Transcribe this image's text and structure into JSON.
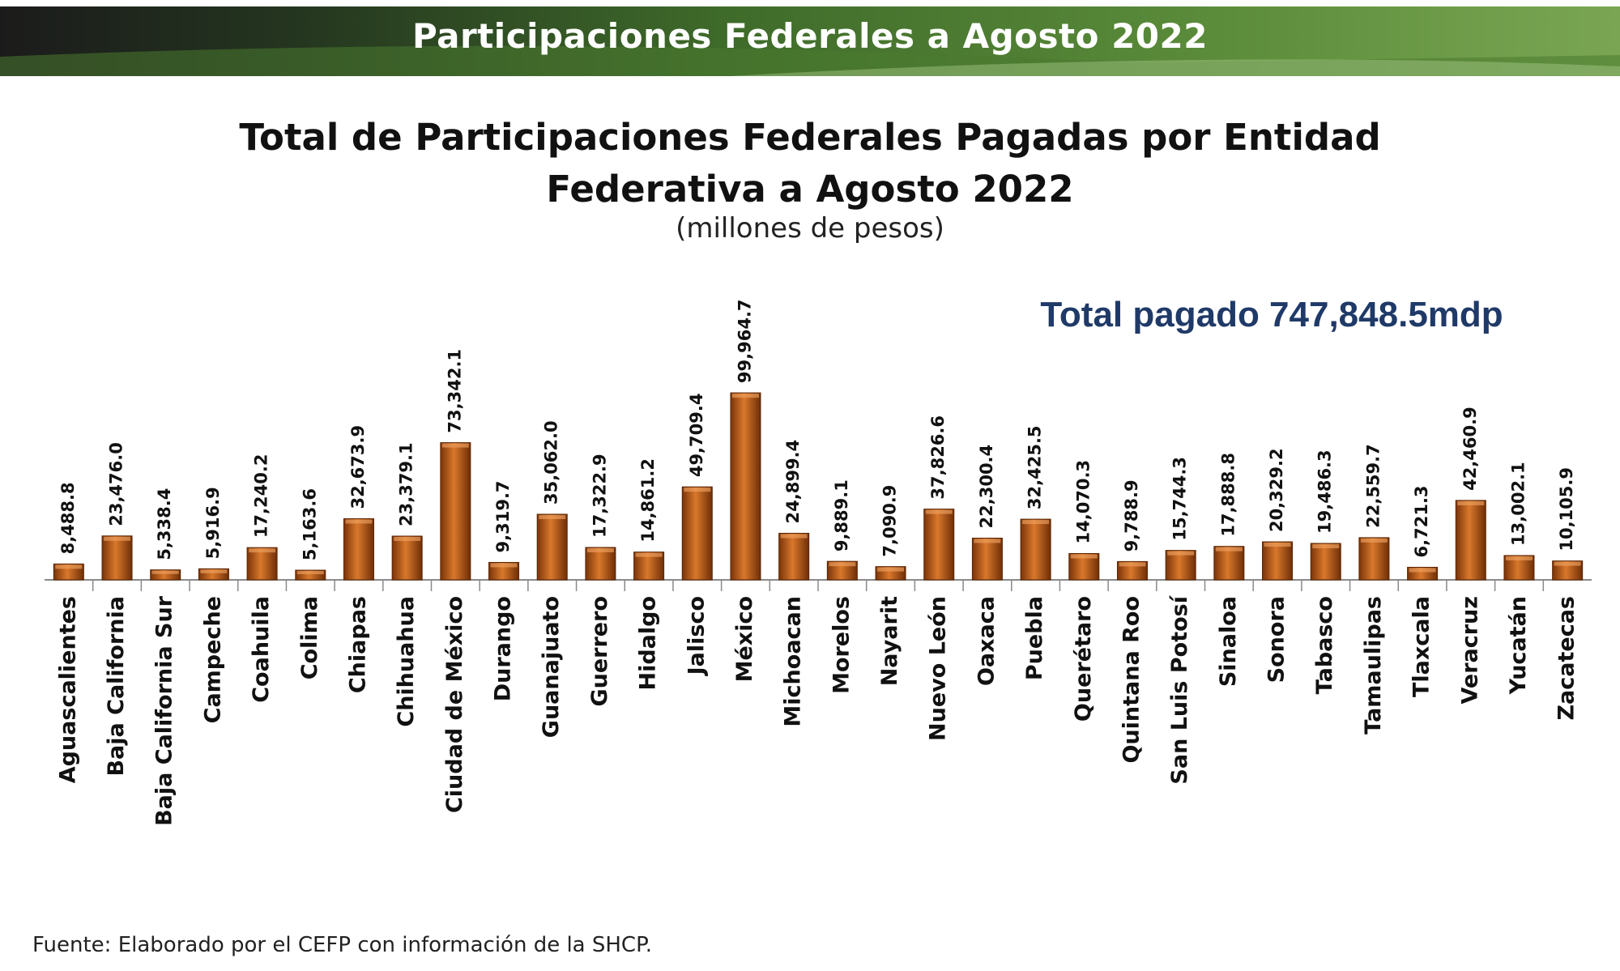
{
  "header": {
    "banner_title": "Participaciones Federales a Agosto 2022"
  },
  "chart_data": {
    "type": "bar",
    "title": "Total de Participaciones Federales Pagadas por Entidad Federativa a Agosto 2022",
    "title_lines": [
      "Total de Participaciones Federales Pagadas por Entidad",
      "Federativa a Agosto 2022"
    ],
    "subtitle": "(millones de pesos)",
    "total_label": "Total pagado 747,848.5mdp",
    "xlabel": "",
    "ylabel": "",
    "ylim": [
      0,
      100000
    ],
    "grid": false,
    "bar_color": "#c0601a",
    "categories": [
      "Aguascalientes",
      "Baja California",
      "Baja California Sur",
      "Campeche",
      "Coahuila",
      "Colima",
      "Chiapas",
      "Chihuahua",
      "Ciudad de México",
      "Durango",
      "Guanajuato",
      "Guerrero",
      "Hidalgo",
      "Jalisco",
      "México",
      "Michoacan",
      "Morelos",
      "Nayarit",
      "Nuevo León",
      "Oaxaca",
      "Puebla",
      "Querétaro",
      "Quintana Roo",
      "San Luis Potosí",
      "Sinaloa",
      "Sonora",
      "Tabasco",
      "Tamaulipas",
      "Tlaxcala",
      "Veracruz",
      "Yucatán",
      "Zacatecas"
    ],
    "values": [
      8488.8,
      23476.0,
      5338.4,
      5916.9,
      17240.2,
      5163.6,
      32673.9,
      23379.1,
      73342.1,
      9319.7,
      35062.0,
      17322.9,
      14861.2,
      49709.4,
      99964.7,
      24899.4,
      9889.1,
      7090.9,
      37826.6,
      22300.4,
      32425.5,
      14070.3,
      9788.9,
      15744.3,
      17888.8,
      20329.2,
      19486.3,
      22559.7,
      6721.3,
      42460.9,
      13002.1,
      10105.9
    ],
    "value_labels": [
      "8,488.8",
      "23,476.0",
      "5,338.4",
      "5,916.9",
      "17,240.2",
      "5,163.6",
      "32,673.9",
      "23,379.1",
      "73,342.1",
      "9,319.7",
      "35,062.0",
      "17,322.9",
      "14,861.2",
      "49,709.4",
      "99,964.7",
      "24,899.4",
      "9,889.1",
      "7,090.9",
      "37,826.6",
      "22,300.4",
      "32,425.5",
      "14,070.3",
      "9,788.9",
      "15,744.3",
      "17,888.8",
      "20,329.2",
      "19,486.3",
      "22,559.7",
      "6,721.3",
      "42,460.9",
      "13,002.1",
      "10,105.9"
    ]
  },
  "footer": {
    "source": "Fuente: Elaborado por el CEFP con información de la SHCP."
  }
}
